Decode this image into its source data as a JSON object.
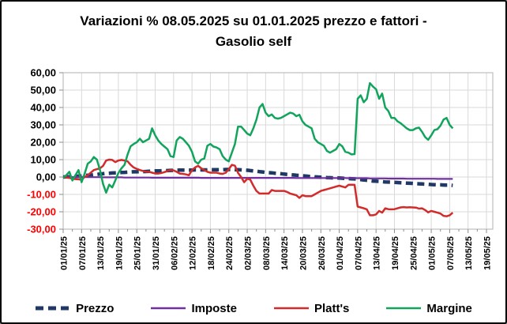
{
  "window": {
    "background": "#FFFFFF",
    "border_color": "#000000"
  },
  "chart_data": {
    "type": "line",
    "title": "Variazioni % 08.05.2025 su 01.01.2025 prezzo e fattori - Gasolio self",
    "grid": true,
    "gridline_color": "#D9D9D9",
    "plot_frame_color": "#BFBFBF",
    "tick_color": "#8C8C8C",
    "axis_label_color": "#000000",
    "axis_label_color_negative": "#FF0000",
    "legend_position": "bottom",
    "ylim": [
      -30,
      60
    ],
    "y_tick_step": 10,
    "y_tick_labels": [
      "60,00",
      "50,00",
      "40,00",
      "30,00",
      "20,00",
      "10,00",
      "0,00",
      "-10,00",
      "-20,00",
      "-30,00"
    ],
    "x_start_date": "01/01/25",
    "x_frequency": "daily",
    "x_tick_interval_days": 6,
    "x_tick_labels": [
      "01/01/25",
      "07/01/25",
      "13/01/25",
      "19/01/25",
      "25/01/25",
      "31/01/25",
      "06/02/25",
      "12/02/25",
      "18/02/25",
      "24/02/25",
      "02/03/25",
      "08/03/25",
      "14/03/25",
      "20/03/25",
      "26/03/25",
      "01/04/25",
      "07/04/25",
      "13/04/25",
      "19/04/25",
      "25/04/25",
      "01/05/25",
      "07/05/25",
      "13/05/25",
      "19/05/25"
    ],
    "series": [
      {
        "name": "Prezzo",
        "color": "#1F3864",
        "style": "dashed",
        "width": 4.5,
        "values": [
          0,
          0.1,
          0.2,
          0.3,
          0.4,
          0.5,
          0.6,
          0.8,
          1,
          1.1,
          1.3,
          1.5,
          1.7,
          1.9,
          2.1,
          2.2,
          2.3,
          2.4,
          2.5,
          2.6,
          2.7,
          2.8,
          2.9,
          3,
          3,
          3.1,
          3.1,
          3.2,
          3.3,
          3.4,
          3.5,
          3.5,
          3.6,
          3.7,
          3.7,
          3.8,
          3.8,
          3.9,
          4,
          4,
          4,
          4,
          4,
          4.1,
          4.1,
          4.1,
          4.1,
          4.1,
          4.2,
          4.2,
          4.2,
          4.2,
          4.2,
          4.3,
          4.3,
          4.3,
          4.2,
          4.2,
          4.1,
          4,
          3.9,
          3.7,
          3.5,
          3.3,
          3.1,
          2.9,
          2.7,
          2.5,
          2.4,
          2.2,
          2.1,
          1.9,
          1.7,
          1.5,
          1.3,
          1.2,
          1,
          0.9,
          0.7,
          0.6,
          0.4,
          0.3,
          0.1,
          0,
          -0.1,
          -0.2,
          -0.3,
          -0.4,
          -0.5,
          -0.5,
          -0.6,
          -0.7,
          -0.8,
          -0.9,
          -1,
          -1.1,
          -1.3,
          -1.5,
          -1.7,
          -1.9,
          -2.1,
          -2.3,
          -2.4,
          -2.5,
          -2.7,
          -2.8,
          -2.9,
          -3,
          -3.1,
          -3.2,
          -3.3,
          -3.4,
          -3.5,
          -3.6,
          -3.7,
          -3.8,
          -3.9,
          -4,
          -4.1,
          -4.2,
          -4.3,
          -4.4,
          -4.5,
          -4.5,
          -4.6,
          -4.7,
          -4.7,
          -4.8
        ]
      },
      {
        "name": "Imposte",
        "color": "#7030A0",
        "style": "solid",
        "width": 2.2,
        "values": [
          0,
          0,
          0,
          0,
          0,
          0,
          0,
          0,
          -0.1,
          -0.1,
          -0.1,
          -0.1,
          -0.1,
          -0.2,
          -0.2,
          -0.2,
          -0.2,
          -0.2,
          -0.2,
          -0.2,
          -0.3,
          -0.3,
          -0.3,
          -0.3,
          -0.3,
          -0.3,
          -0.3,
          -0.3,
          -0.3,
          -0.4,
          -0.4,
          -0.4,
          -0.4,
          -0.4,
          -0.4,
          -0.4,
          -0.4,
          -0.4,
          -0.4,
          -0.4,
          -0.4,
          -0.4,
          -0.4,
          -0.4,
          -0.4,
          -0.5,
          -0.5,
          -0.5,
          -0.5,
          -0.5,
          -0.5,
          -0.5,
          -0.5,
          -0.5,
          -0.5,
          -0.5,
          -0.5,
          -0.5,
          -0.5,
          -0.5,
          -0.5,
          -0.5,
          -0.5,
          -0.5,
          -0.5,
          -0.5,
          -0.5,
          -0.5,
          -0.5,
          -0.5,
          -0.5,
          -0.5,
          -0.5,
          -0.5,
          -0.5,
          -0.5,
          -0.6,
          -0.6,
          -0.6,
          -0.6,
          -0.6,
          -0.6,
          -0.6,
          -0.6,
          -0.6,
          -0.6,
          -0.6,
          -0.6,
          -0.6,
          -0.6,
          -0.6,
          -0.6,
          -0.6,
          -0.7,
          -0.7,
          -0.7,
          -0.7,
          -0.7,
          -0.7,
          -0.7,
          -0.8,
          -0.8,
          -0.8,
          -0.8,
          -0.8,
          -0.8,
          -0.9,
          -0.9,
          -0.9,
          -0.9,
          -0.9,
          -0.9,
          -1,
          -1,
          -1,
          -1,
          -1,
          -1,
          -1,
          -1,
          -1,
          -1,
          -1.1,
          -1.1,
          -1.1,
          -1.1,
          -1.1,
          -1.1
        ]
      },
      {
        "name": "Platt's",
        "color": "#D22B2B",
        "style": "solid",
        "width": 2.5,
        "values": [
          0,
          -0.3,
          -0.5,
          -1,
          -1.2,
          -1.3,
          -1.5,
          0,
          1,
          2.5,
          4,
          4.5,
          5,
          6.4,
          9.5,
          10,
          9.8,
          8.6,
          9.5,
          9.8,
          9.5,
          9,
          7,
          5.5,
          4.7,
          4,
          3.5,
          3,
          3,
          2.5,
          2,
          2,
          2.3,
          2.8,
          3.5,
          4,
          3.8,
          3,
          2,
          1.8,
          1.5,
          1,
          4,
          5.5,
          6.4,
          5,
          4,
          3,
          2.5,
          2.5,
          2.5,
          2,
          1.8,
          2.5,
          4.5,
          7,
          6.5,
          2.4,
          0,
          -3,
          -1,
          -1.5,
          -5,
          -8,
          -9.5,
          -9.5,
          -9.5,
          -9.5,
          -7.5,
          -8,
          -8,
          -8,
          -8,
          -8.6,
          -9.5,
          -10,
          -10.5,
          -12,
          -10.5,
          -11,
          -11,
          -11,
          -10,
          -9,
          -8,
          -7.5,
          -7,
          -6.5,
          -6,
          -5.5,
          -5,
          -5.5,
          -6,
          -4.5,
          -4.4,
          -4.5,
          -17,
          -17.5,
          -18,
          -18.6,
          -22,
          -22,
          -21.5,
          -19.5,
          -20.5,
          -18,
          -18.5,
          -18.6,
          -18.5,
          -18,
          -17.5,
          -17.3,
          -17.5,
          -17.4,
          -17.5,
          -17.6,
          -18.2,
          -18,
          -19,
          -20.3,
          -19.5,
          -20,
          -20.5,
          -21,
          -22.3,
          -22.6,
          -22,
          -20.5
        ]
      },
      {
        "name": "Margine",
        "color": "#12A45C",
        "style": "solid",
        "width": 2.5,
        "values": [
          -0.5,
          1,
          3,
          -2,
          1,
          4,
          -3,
          2,
          7.7,
          9,
          11.5,
          10,
          4,
          -4,
          -9,
          -4.4,
          -6,
          -2,
          2.3,
          5,
          7,
          13,
          17.7,
          19,
          20,
          22,
          20,
          21,
          22,
          28,
          24,
          21,
          19,
          17.5,
          16,
          12,
          11.5,
          21,
          23,
          22,
          20,
          18,
          14.5,
          9,
          7.7,
          10,
          10.6,
          18,
          19,
          17.5,
          17,
          16,
          12,
          10,
          9,
          14,
          19,
          29,
          29,
          27,
          25,
          24,
          28,
          33,
          40,
          42,
          37,
          35,
          36,
          34,
          33.6,
          34,
          35,
          36,
          37,
          36.5,
          35,
          35.8,
          32,
          30,
          29,
          28,
          22,
          20,
          19,
          18,
          15,
          14,
          15,
          16,
          19,
          17.7,
          14.5,
          14,
          13,
          13.2,
          45,
          47,
          43,
          45,
          54,
          52,
          50.5,
          45,
          48,
          40,
          38,
          34,
          34,
          32,
          31,
          29.5,
          28,
          27,
          27,
          28,
          28.4,
          26,
          23,
          21.4,
          24,
          27,
          27.5,
          29.5,
          33,
          34,
          30,
          28
        ]
      }
    ]
  }
}
